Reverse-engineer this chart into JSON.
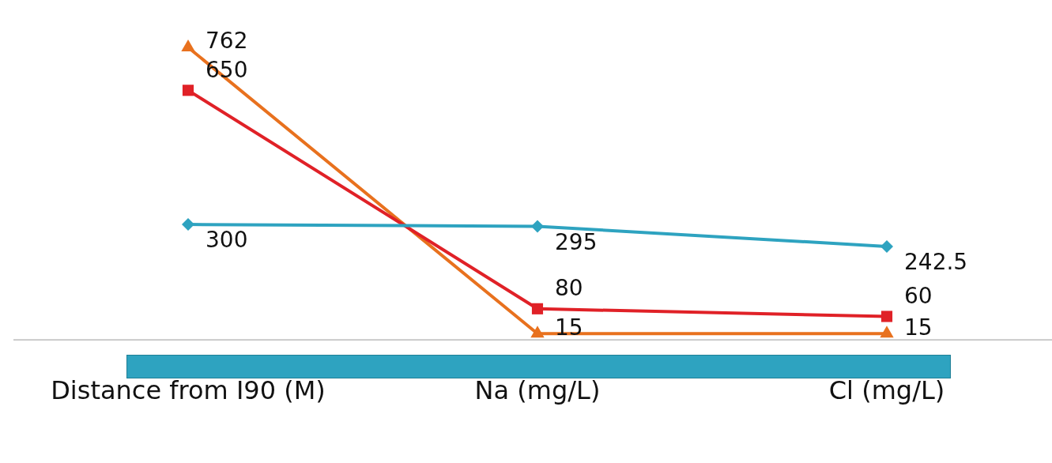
{
  "chart_data": {
    "type": "line",
    "data_labels": true,
    "legend": false,
    "grid": false,
    "tick_labels": "x",
    "categories": [
      "Distance from I90 (M)",
      "Na (mg/L)",
      "Cl (mg/L)"
    ],
    "series": [
      {
        "color": "#2ea3c0",
        "marker": "diamond",
        "values": [
          300,
          295,
          242.5
        ]
      },
      {
        "color": "#e02127",
        "marker": "square",
        "values": [
          650,
          80,
          60
        ]
      },
      {
        "color": "#e8711e",
        "marker": "triangle",
        "values": [
          762,
          15,
          15
        ]
      }
    ]
  }
}
